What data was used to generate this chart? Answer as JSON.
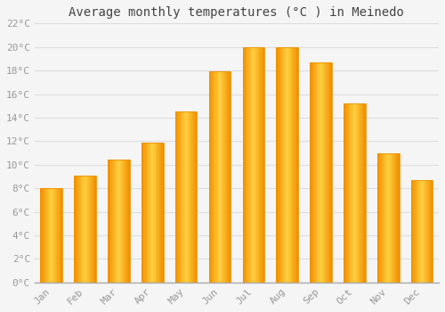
{
  "title": "Average monthly temperatures (°C ) in Meinedo",
  "months": [
    "Jan",
    "Feb",
    "Mar",
    "Apr",
    "May",
    "Jun",
    "Jul",
    "Aug",
    "Sep",
    "Oct",
    "Nov",
    "Dec"
  ],
  "values": [
    8.0,
    9.1,
    10.4,
    11.9,
    14.5,
    17.9,
    20.0,
    20.0,
    18.7,
    15.2,
    11.0,
    8.7
  ],
  "bar_color_center": "#FFD04A",
  "bar_color_edge": "#F09000",
  "background_color": "#F5F5F5",
  "plot_bg_color": "#F5F5F5",
  "grid_color": "#DDDDDD",
  "title_color": "#444444",
  "tick_label_color": "#999999",
  "axis_color": "#AAAAAA",
  "ylim": [
    0,
    22
  ],
  "ytick_step": 2,
  "title_fontsize": 10,
  "tick_fontsize": 8
}
